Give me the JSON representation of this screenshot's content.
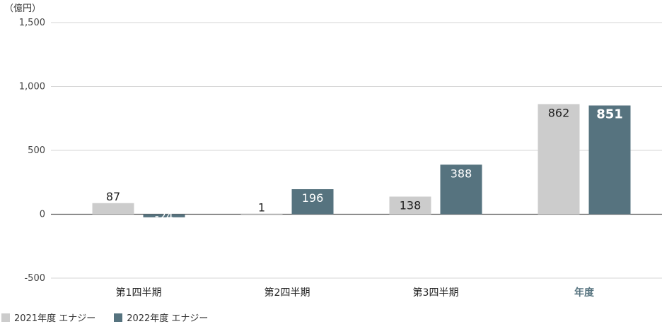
{
  "chart_data": {
    "type": "bar",
    "unit_label": "（億円）",
    "categories": [
      "第1四半期",
      "第2四半期",
      "第3四半期",
      "年度"
    ],
    "series": [
      {
        "name": "2021年度 エナジー",
        "color": "#cccccc",
        "values": [
          87,
          1,
          138,
          862
        ]
      },
      {
        "name": "2022年度 エナジー",
        "color": "#56737f",
        "values": [
          -24,
          196,
          388,
          851
        ]
      }
    ],
    "ylim": [
      -500,
      1500
    ],
    "yticks": [
      -500,
      0,
      500,
      1000,
      1500
    ],
    "ytick_labels": [
      "-500",
      "0",
      "500",
      "1,000",
      "1,500"
    ],
    "grid": true,
    "highlight_category_color": "#56737f",
    "legend_position": "bottom-left"
  }
}
